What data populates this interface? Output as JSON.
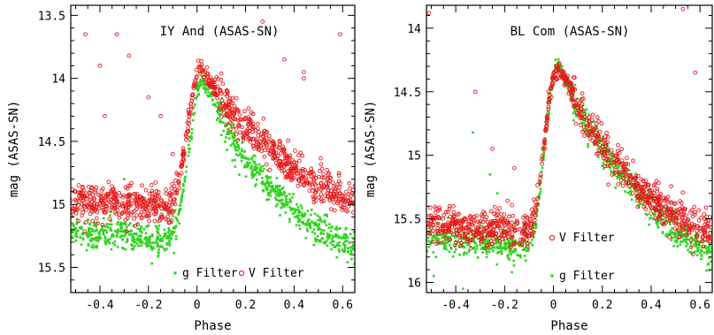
{
  "colors": {
    "v_filter": "#e8191b",
    "g_filter": "#2ed41e",
    "axes": "#000000"
  },
  "chart_data": [
    {
      "type": "scatter",
      "title": "IY And (ASAS-SN)",
      "xlabel": "Phase",
      "ylabel": "mag (ASAS-SN)",
      "xlim": [
        -0.52,
        0.65
      ],
      "ylim": [
        15.7,
        13.42
      ],
      "y_inverted": true,
      "grid": false,
      "xticks": [
        -0.4,
        -0.2,
        0,
        0.2,
        0.4,
        0.6
      ],
      "xtick_labels": [
        "-0.4",
        "-0.2",
        "0",
        "0.2",
        "0.4",
        "0.6"
      ],
      "yticks": [
        13.5,
        14,
        14.5,
        15,
        15.5
      ],
      "ytick_labels": [
        "13.5",
        "14",
        "14.5",
        "15",
        "15.5"
      ],
      "legend_position": "bottom",
      "series": [
        {
          "name": "V Filter",
          "marker": "open-circle",
          "color": "#e8191b",
          "legend_label": "V Filter",
          "trend": [
            [
              -0.52,
              14.97
            ],
            [
              -0.4,
              14.98
            ],
            [
              -0.3,
              14.99
            ],
            [
              -0.2,
              15.0
            ],
            [
              -0.12,
              15.03
            ],
            [
              -0.08,
              14.9
            ],
            [
              -0.05,
              14.55
            ],
            [
              -0.02,
              14.15
            ],
            [
              0.0,
              13.92
            ],
            [
              0.02,
              13.9
            ],
            [
              0.05,
              14.02
            ],
            [
              0.1,
              14.15
            ],
            [
              0.15,
              14.28
            ],
            [
              0.2,
              14.38
            ],
            [
              0.3,
              14.56
            ],
            [
              0.4,
              14.72
            ],
            [
              0.5,
              14.85
            ],
            [
              0.6,
              14.95
            ],
            [
              0.65,
              14.98
            ]
          ],
          "scatter": 0.07,
          "outliers": [
            [
              -0.46,
              13.65
            ],
            [
              -0.4,
              13.9
            ],
            [
              -0.33,
              13.65
            ],
            [
              -0.28,
              13.82
            ],
            [
              -0.2,
              14.15
            ],
            [
              -0.15,
              14.3
            ],
            [
              -0.1,
              14.6
            ],
            [
              0.27,
              13.55
            ],
            [
              0.36,
              13.85
            ],
            [
              0.44,
              13.95
            ],
            [
              0.44,
              14.0
            ],
            [
              0.59,
              13.65
            ],
            [
              -0.38,
              14.3
            ]
          ]
        },
        {
          "name": "g Filter",
          "marker": "filled-dot",
          "color": "#2ed41e",
          "legend_label": "g Filter",
          "trend": [
            [
              -0.52,
              15.2
            ],
            [
              -0.4,
              15.23
            ],
            [
              -0.3,
              15.25
            ],
            [
              -0.2,
              15.28
            ],
            [
              -0.12,
              15.3
            ],
            [
              -0.08,
              15.15
            ],
            [
              -0.05,
              14.8
            ],
            [
              -0.02,
              14.4
            ],
            [
              0.0,
              14.1
            ],
            [
              0.02,
              14.0
            ],
            [
              0.05,
              14.1
            ],
            [
              0.1,
              14.3
            ],
            [
              0.15,
              14.5
            ],
            [
              0.2,
              14.65
            ],
            [
              0.3,
              14.85
            ],
            [
              0.4,
              15.05
            ],
            [
              0.5,
              15.2
            ],
            [
              0.6,
              15.3
            ],
            [
              0.65,
              15.35
            ]
          ],
          "scatter": 0.06,
          "outliers": [
            [
              -0.3,
              14.8
            ],
            [
              -0.25,
              14.95
            ],
            [
              0.1,
              14.45
            ]
          ]
        }
      ]
    },
    {
      "type": "scatter",
      "title": "BL Com (ASAS-SN)",
      "xlabel": "Phase",
      "ylabel": "mag (ASAS-SN)",
      "xlim": [
        -0.52,
        0.65
      ],
      "ylim": [
        16.08,
        13.82
      ],
      "y_inverted": true,
      "grid": false,
      "xticks": [
        -0.4,
        -0.2,
        0,
        0.2,
        0.4,
        0.6
      ],
      "xtick_labels": [
        "-0.4",
        "-0.2",
        "0",
        "0.2",
        "0.4",
        "0.6"
      ],
      "yticks": [
        14,
        14.5,
        15,
        15.5,
        16
      ],
      "ytick_labels": [
        "14",
        "14.5",
        "15",
        "15.5",
        "16"
      ],
      "legend_position": "bottom-center",
      "series": [
        {
          "name": "V Filter",
          "marker": "open-circle",
          "color": "#e8191b",
          "legend_label": "V Filter",
          "trend": [
            [
              -0.52,
              15.52
            ],
            [
              -0.4,
              15.55
            ],
            [
              -0.3,
              15.57
            ],
            [
              -0.2,
              15.58
            ],
            [
              -0.1,
              15.6
            ],
            [
              -0.07,
              15.4
            ],
            [
              -0.04,
              14.95
            ],
            [
              -0.02,
              14.6
            ],
            [
              0.0,
              14.38
            ],
            [
              0.02,
              14.33
            ],
            [
              0.05,
              14.4
            ],
            [
              0.1,
              14.6
            ],
            [
              0.15,
              14.78
            ],
            [
              0.2,
              14.92
            ],
            [
              0.3,
              15.15
            ],
            [
              0.4,
              15.35
            ],
            [
              0.5,
              15.48
            ],
            [
              0.6,
              15.58
            ],
            [
              0.65,
              15.6
            ]
          ],
          "scatter": 0.07,
          "outliers": [
            [
              -0.51,
              13.88
            ],
            [
              -0.32,
              14.5
            ],
            [
              -0.25,
              14.95
            ],
            [
              -0.16,
              15.1
            ],
            [
              -0.02,
              14.5
            ],
            [
              0.53,
              13.85
            ],
            [
              0.58,
              14.35
            ],
            [
              0.3,
              15.02
            ]
          ]
        },
        {
          "name": "g Filter",
          "marker": "filled-dot",
          "color": "#2ed41e",
          "legend_label": "g Filter",
          "trend": [
            [
              -0.52,
              15.65
            ],
            [
              -0.4,
              15.67
            ],
            [
              -0.3,
              15.68
            ],
            [
              -0.2,
              15.7
            ],
            [
              -0.1,
              15.72
            ],
            [
              -0.07,
              15.5
            ],
            [
              -0.04,
              15.0
            ],
            [
              -0.02,
              14.6
            ],
            [
              0.0,
              14.35
            ],
            [
              0.02,
              14.3
            ],
            [
              0.05,
              14.42
            ],
            [
              0.1,
              14.62
            ],
            [
              0.15,
              14.8
            ],
            [
              0.2,
              14.95
            ],
            [
              0.3,
              15.2
            ],
            [
              0.4,
              15.42
            ],
            [
              0.5,
              15.6
            ],
            [
              0.6,
              15.72
            ],
            [
              0.65,
              15.76
            ]
          ],
          "scatter": 0.06,
          "outliers": [
            [
              -0.33,
              14.82
            ],
            [
              -0.26,
              15.15
            ],
            [
              -0.23,
              15.3
            ],
            [
              -0.17,
              15.92
            ],
            [
              -0.37,
              16.05
            ],
            [
              -0.49,
              15.95
            ]
          ]
        }
      ]
    }
  ]
}
